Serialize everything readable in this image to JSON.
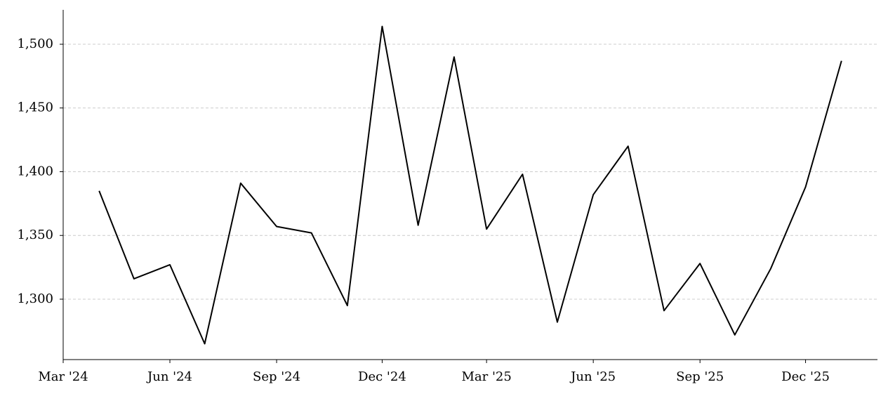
{
  "chart_data": {
    "type": "line",
    "x": [
      "2024-04",
      "2024-05",
      "2024-06",
      "2024-07",
      "2024-08",
      "2024-09",
      "2024-10",
      "2024-11",
      "2024-12",
      "2025-01",
      "2025-02",
      "2025-03",
      "2025-04",
      "2025-05",
      "2025-06",
      "2025-07",
      "2025-08",
      "2025-09",
      "2025-10",
      "2025-11",
      "2025-12",
      "2026-01"
    ],
    "series": [
      {
        "color": "#000000",
        "values": [
          1385,
          1316,
          1327,
          1265,
          1391,
          1357,
          1352,
          1295,
          1514,
          1358,
          1490,
          1355,
          1398,
          1282,
          1382,
          1420,
          1291,
          1328,
          1272,
          1324,
          1388,
          1487
        ]
      }
    ],
    "xlim": [
      "2024-03",
      "2026-02"
    ],
    "xticks": [
      {
        "value": "2024-03",
        "label": "Mar '24"
      },
      {
        "value": "2024-06",
        "label": "Jun '24"
      },
      {
        "value": "2024-09",
        "label": "Sep '24"
      },
      {
        "value": "2024-12",
        "label": "Dec '24"
      },
      {
        "value": "2025-03",
        "label": "Mar '25"
      },
      {
        "value": "2025-06",
        "label": "Jun '25"
      },
      {
        "value": "2025-09",
        "label": "Sep '25"
      },
      {
        "value": "2025-12",
        "label": "Dec '25"
      }
    ],
    "ylim": [
      1252.6,
      1527
    ],
    "yticks": [
      {
        "value": 1300,
        "label": "1,300"
      },
      {
        "value": 1350,
        "label": "1,350"
      },
      {
        "value": 1400,
        "label": "1,400"
      },
      {
        "value": 1450,
        "label": "1,450"
      },
      {
        "value": 1500,
        "label": "1,500"
      }
    ],
    "grid": true
  }
}
